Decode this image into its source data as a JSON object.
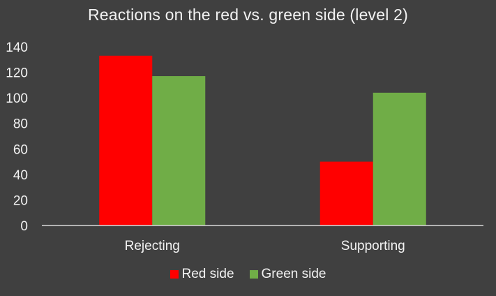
{
  "chart_data": {
    "type": "bar",
    "title": "Reactions on the red vs. green side (level 2)",
    "xlabel": "",
    "ylabel": "",
    "categories": [
      "Rejecting",
      "Supporting"
    ],
    "series": [
      {
        "name": "Red side",
        "color": "#ff0000",
        "values": [
          133,
          50
        ]
      },
      {
        "name": "Green side",
        "color": "#70ad47",
        "values": [
          117,
          104
        ]
      }
    ],
    "ylim": [
      0,
      140
    ],
    "yticks": [
      "0",
      "20",
      "40",
      "60",
      "80",
      "100",
      "120",
      "140"
    ],
    "grid": false,
    "legend": "bottom"
  }
}
